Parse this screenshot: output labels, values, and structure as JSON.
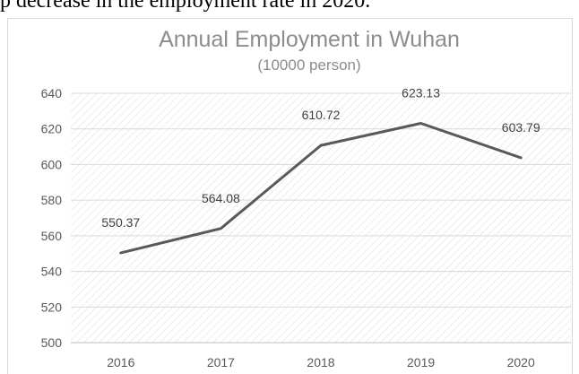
{
  "caption_fragment": "p decrease in the employment rate in 2020.",
  "chart_data": {
    "type": "line",
    "title": "Annual Employment in Wuhan",
    "subtitle": "(10000 person)",
    "xlabel": "",
    "ylabel": "",
    "categories": [
      "2016",
      "2017",
      "2018",
      "2019",
      "2020"
    ],
    "series": [
      {
        "values": [
          550.37,
          564.08,
          610.72,
          623.13,
          603.79
        ],
        "labels": [
          "550.37",
          "564.08",
          "610.72",
          "623.13",
          "603.79"
        ],
        "color": "#595959"
      }
    ],
    "ylim": [
      500,
      640
    ],
    "yticks": [
      500,
      520,
      540,
      560,
      580,
      600,
      620,
      640
    ],
    "grid": true,
    "legend": "none",
    "background_pattern": "diagonal-hatch"
  }
}
